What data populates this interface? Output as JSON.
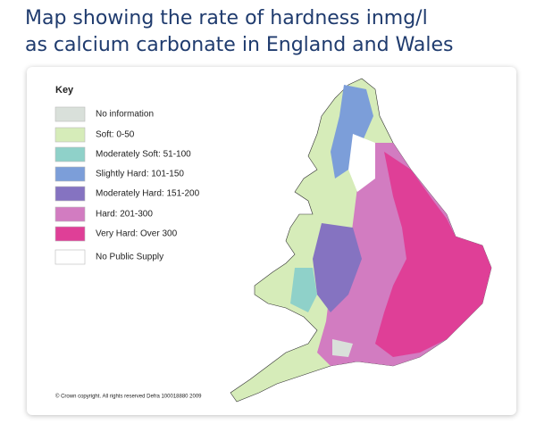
{
  "title": [
    "Map showing the rate of hardness inmg/l",
    "as calcium carbonate in England and Wales"
  ],
  "key": {
    "heading": "Key",
    "items": [
      {
        "label": "No information",
        "color": "#d9e0da"
      },
      {
        "label": "Soft: 0-50",
        "color": "#d6ecb9"
      },
      {
        "label": "Moderately Soft: 51-100",
        "color": "#8fd1c9"
      },
      {
        "label": "Slightly Hard: 101-150",
        "color": "#7c9ed9"
      },
      {
        "label": "Moderately Hard: 151-200",
        "color": "#8573c1"
      },
      {
        "label": "Hard: 201-300",
        "color": "#d27cc1"
      },
      {
        "label": "Very Hard: Over 300",
        "color": "#df3f97"
      },
      {
        "label": "No Public Supply",
        "color": "#ffffff"
      }
    ]
  },
  "copyright": "© Crown copyright. All rights reserved Defra 100018880 2009"
}
